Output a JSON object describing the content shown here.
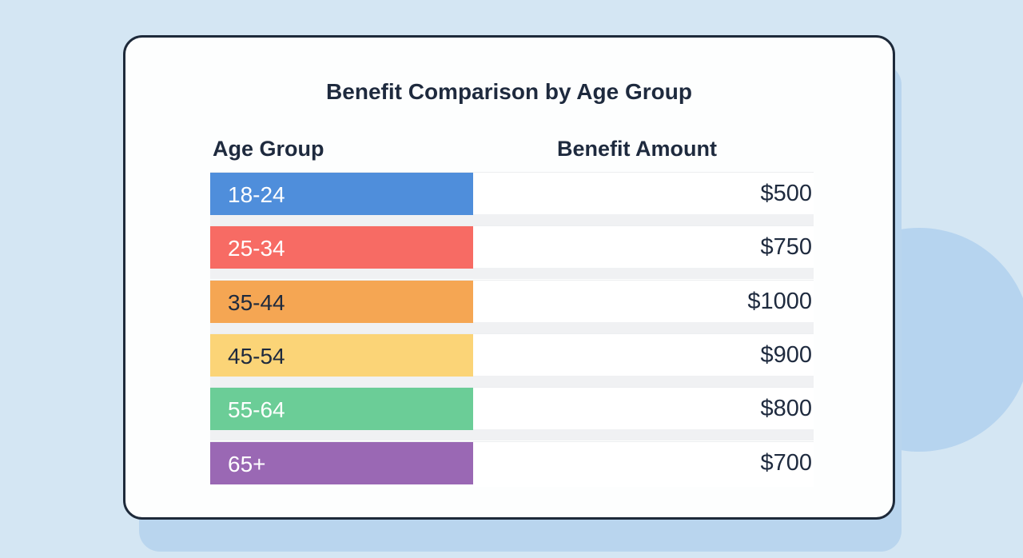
{
  "chart_data": {
    "type": "table",
    "title": "Benefit Comparison by Age Group",
    "columns": [
      "Age Group",
      "Benefit Amount"
    ],
    "categories": [
      "18-24",
      "25-34",
      "35-44",
      "45-54",
      "55-64",
      "65+"
    ],
    "values": [
      500,
      750,
      1000,
      900,
      800,
      700
    ],
    "rows": [
      {
        "age": "18-24",
        "amount": "$500",
        "color": "#4f8edb",
        "label_color": "#ffffff"
      },
      {
        "age": "25-34",
        "amount": "$750",
        "color": "#f76b64",
        "label_color": "#ffffff"
      },
      {
        "age": "35-44",
        "amount": "$1000",
        "color": "#f5a653",
        "label_color": "#1e2a3e"
      },
      {
        "age": "45-54",
        "amount": "$900",
        "color": "#fbd477",
        "label_color": "#1e2a3e"
      },
      {
        "age": "55-64",
        "amount": "$800",
        "color": "#6bcd97",
        "label_color": "#ffffff"
      },
      {
        "age": "65+",
        "amount": "$700",
        "color": "#9a68b4",
        "label_color": "#ffffff"
      }
    ]
  }
}
